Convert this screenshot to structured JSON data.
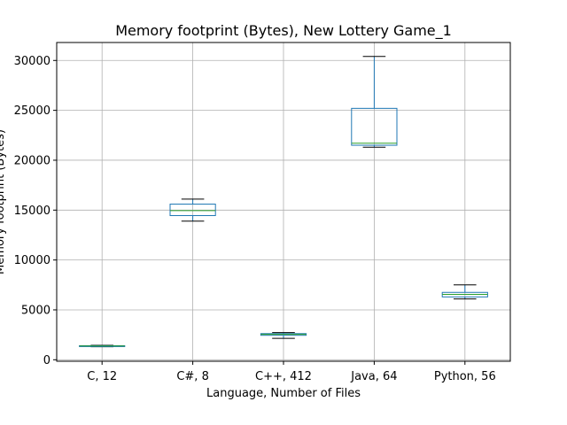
{
  "chart_data": {
    "type": "box",
    "title": "Memory footprint (Bytes), New Lottery Game_1",
    "xlabel": "Language, Number of Files",
    "ylabel": "Memory footprint (Bytes)",
    "ylim": [
      -150,
      31800
    ],
    "yticks": [
      0,
      5000,
      10000,
      15000,
      20000,
      25000,
      30000
    ],
    "grid": true,
    "colors": {
      "box": "#1f77b4",
      "median": "#2ca02c",
      "whisker": "#1f77b4",
      "cap": "#000000",
      "grid": "#b0b0b0"
    },
    "categories": [
      "C, 12",
      "C#, 8",
      "C++, 412",
      "Java, 64",
      "Python, 56"
    ],
    "boxes": [
      {
        "category": "C, 12",
        "whisker_low": 1300,
        "q1": 1350,
        "median": 1380,
        "q3": 1410,
        "whisker_high": 1450
      },
      {
        "category": "C#, 8",
        "whisker_low": 13900,
        "q1": 14450,
        "median": 14950,
        "q3": 15600,
        "whisker_high": 16100
      },
      {
        "category": "C++, 412",
        "whisker_low": 2150,
        "q1": 2450,
        "median": 2550,
        "q3": 2620,
        "whisker_high": 2720
      },
      {
        "category": "Java, 64",
        "whisker_low": 21300,
        "q1": 21500,
        "median": 21700,
        "q3": 25200,
        "whisker_high": 30400
      },
      {
        "category": "Python, 56",
        "whisker_low": 6100,
        "q1": 6300,
        "median": 6550,
        "q3": 6750,
        "whisker_high": 7500
      }
    ]
  }
}
